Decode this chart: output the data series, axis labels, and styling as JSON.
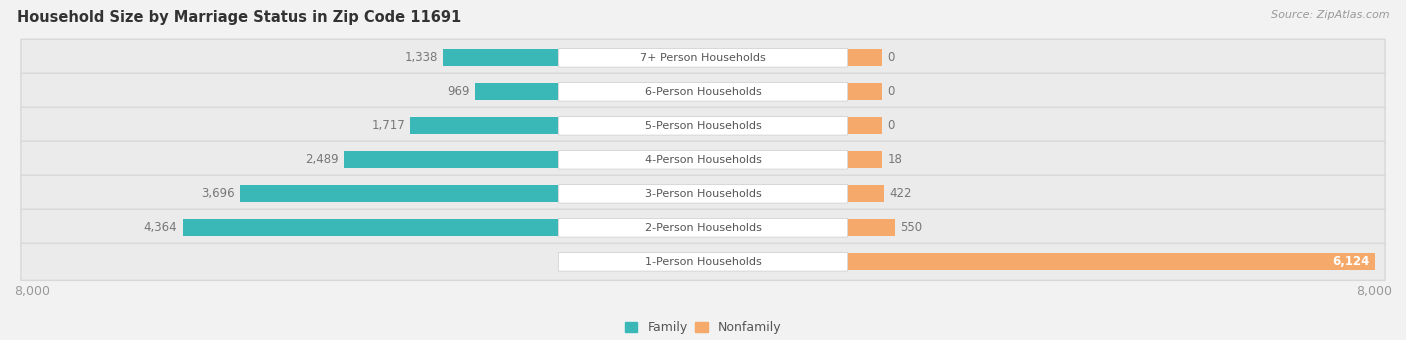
{
  "title": "Household Size by Marriage Status in Zip Code 11691",
  "source": "Source: ZipAtlas.com",
  "categories": [
    "7+ Person Households",
    "6-Person Households",
    "5-Person Households",
    "4-Person Households",
    "3-Person Households",
    "2-Person Households",
    "1-Person Households"
  ],
  "family": [
    1338,
    969,
    1717,
    2489,
    3696,
    4364,
    0
  ],
  "nonfamily": [
    0,
    0,
    0,
    18,
    422,
    550,
    6124
  ],
  "family_color": "#3ab8b8",
  "nonfamily_color": "#f5a96a",
  "nonfamily_placeholder_color": "#f5c99a",
  "axis_max": 8000,
  "background_color": "#f2f2f2",
  "bar_bg_color": "#e8e8e8",
  "bar_bg_color_alt": "#ececec",
  "label_bg_color": "#ffffff",
  "title_fontsize": 10.5,
  "source_fontsize": 8,
  "bar_label_fontsize": 8.5,
  "category_fontsize": 8,
  "axis_fontsize": 9,
  "placeholder_bar_width": 400
}
